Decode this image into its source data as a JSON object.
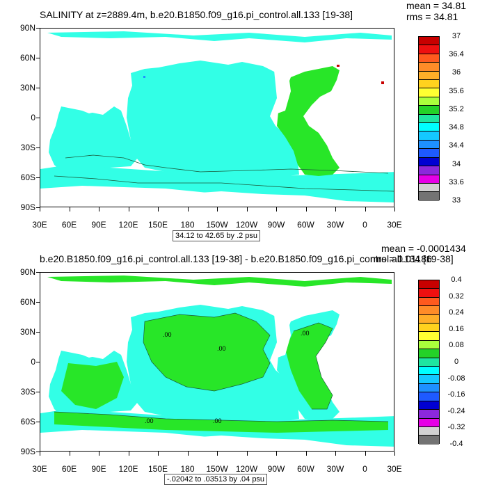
{
  "chart_data": [
    {
      "type": "heatmap",
      "title": "SALINITY at z=2889.4m, b.e20.B1850.f09_g16.pi_control.all.133 [19-38]",
      "stats": {
        "mean": "mean = 34.81",
        "rms": "rms = 34.81"
      },
      "ylabels": [
        "90N",
        "60N",
        "30N",
        "0",
        "30S",
        "60S",
        "90S"
      ],
      "xlabels": [
        "30E",
        "60E",
        "90E",
        "120E",
        "150E",
        "180",
        "150W",
        "120W",
        "90W",
        "60W",
        "30W",
        "0",
        "30E"
      ],
      "range_label": "34.12 to 42.65 by .2 psu",
      "colorbar": {
        "labels": [
          "37",
          "36.4",
          "36",
          "35.6",
          "35.2",
          "34.8",
          "34.4",
          "34",
          "33.6",
          "33"
        ],
        "colors": [
          "#c80000",
          "#ee1010",
          "#ff5a1e",
          "#ff8c28",
          "#ffae28",
          "#ffd21e",
          "#ffff32",
          "#aaff3c",
          "#24d228",
          "#1ee6a0",
          "#00ffff",
          "#14c8ff",
          "#1e90ff",
          "#1e5aff",
          "#0000d2",
          "#8c28dc",
          "#e600e6",
          "#d2d2d2",
          "#737373"
        ]
      },
      "field": {
        "land": "#ffffff",
        "atlantic": "#28e628",
        "pacific": "#32ffe6",
        "southern": "#32ffe6",
        "contour_value": "34.8"
      }
    },
    {
      "type": "heatmap",
      "title": "b.e20.B1850.f09_g16.pi_control.all.133 [19-38] - b.e20.B1850.f09_g16.pi_control.all.134 [19-38]",
      "stats": {
        "mean": "mean = -0.0001434",
        "rms": "rms = 0.01186"
      },
      "ylabels": [
        "90N",
        "60N",
        "30N",
        "0",
        "30S",
        "60S",
        "90S"
      ],
      "xlabels": [
        "30E",
        "60E",
        "90E",
        "120E",
        "150E",
        "180",
        "150W",
        "120W",
        "90W",
        "60W",
        "30W",
        "0",
        "30E"
      ],
      "range_label": "-.02042 to .03513 by .04 psu",
      "contour_label": ".00",
      "colorbar": {
        "labels": [
          "0.4",
          "0.32",
          "0.24",
          "0.16",
          "0.08",
          "0",
          "-0.08",
          "-0.16",
          "-0.24",
          "-0.32",
          "-0.4"
        ],
        "colors": [
          "#c80000",
          "#ee1010",
          "#ff5a1e",
          "#ff8c28",
          "#ffae28",
          "#ffd21e",
          "#ffff32",
          "#aaff3c",
          "#24d228",
          "#1ee6a0",
          "#00ffff",
          "#14c8ff",
          "#1e90ff",
          "#1e5aff",
          "#0000d2",
          "#8c28dc",
          "#e600e6",
          "#d2d2d2",
          "#737373"
        ]
      },
      "field": {
        "land": "#ffffff",
        "positive": "#28e628",
        "negative": "#32ffe6"
      }
    }
  ]
}
